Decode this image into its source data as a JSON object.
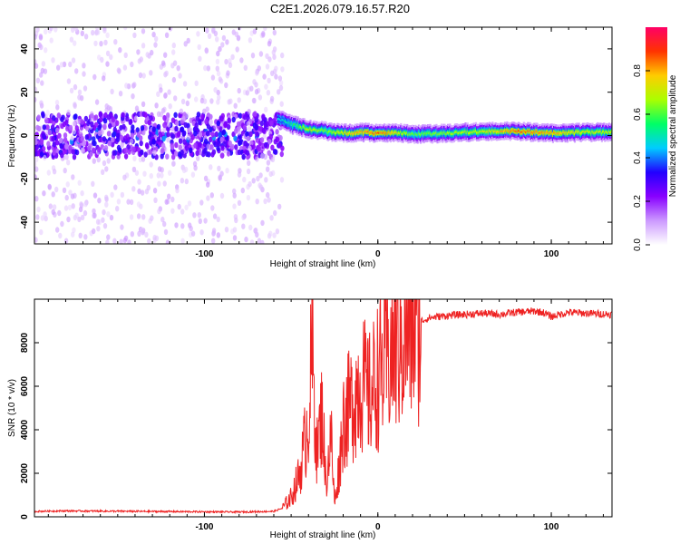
{
  "title": "C2E1.2026.079.16.57.R20",
  "chart_data": [
    {
      "type": "heatmap",
      "title": "",
      "xlabel": "Height of straight line (km)",
      "ylabel": "Frequency (Hz)",
      "xlim": [
        -198,
        135
      ],
      "ylim": [
        -50,
        50
      ],
      "xticks": [
        -100,
        0,
        100
      ],
      "xtick_labels": [
        "-100",
        "0",
        "100"
      ],
      "yticks": [
        -40,
        -20,
        0,
        20,
        40
      ],
      "ytick_labels": [
        "-40",
        "-20",
        "0",
        "20",
        "40"
      ],
      "colorbar": {
        "label": "Normalized spectral amplitude",
        "range": [
          0.0,
          1.0
        ],
        "ticks": [
          0.0,
          0.2,
          0.4,
          0.6,
          0.8
        ],
        "tick_labels": [
          "0.0",
          "0.2",
          "0.4",
          "0.6",
          "0.8"
        ],
        "colormap": [
          "#ffffff",
          "#cc99ff",
          "#8800ff",
          "#2200ff",
          "#00ccff",
          "#00ff66",
          "#aaff00",
          "#ffcc00",
          "#ff3300",
          "#ff0066"
        ]
      },
      "ridge": {
        "x": [
          -58,
          -50,
          -40,
          -30,
          -20,
          -10,
          0,
          10,
          20,
          40,
          60,
          80,
          100,
          120,
          135
        ],
        "frequency": [
          8,
          5,
          3,
          2,
          1,
          1.5,
          1,
          1.5,
          0.5,
          1,
          2,
          2,
          1,
          1.5,
          1.5
        ],
        "amplitude": [
          0.45,
          0.55,
          0.7,
          0.6,
          0.75,
          0.8,
          0.85,
          0.75,
          0.6,
          0.65,
          0.7,
          0.85,
          0.8,
          0.7,
          0.7
        ]
      },
      "noise_region": {
        "x_start": -198,
        "x_end": -55,
        "band_center_hz": 0,
        "band_halfwidth_hz": 10
      }
    },
    {
      "type": "line",
      "title": "",
      "xlabel": "Height of straight line (km)",
      "ylabel": "SNR (10 * v/v)",
      "xlim": [
        -198,
        135
      ],
      "ylim": [
        0,
        10000
      ],
      "xticks": [
        -100,
        0,
        100
      ],
      "xtick_labels": [
        "-100",
        "0",
        "100"
      ],
      "yticks": [
        0,
        2000,
        4000,
        6000,
        8000
      ],
      "ytick_labels": [
        "0",
        "2000",
        "4000",
        "6000",
        "8000"
      ],
      "color": "#ee2222",
      "series": [
        {
          "name": "SNR",
          "x": [
            -198,
            -180,
            -160,
            -140,
            -120,
            -100,
            -80,
            -60,
            -55,
            -50,
            -45,
            -40,
            -38,
            -35,
            -32,
            -30,
            -27,
            -25,
            -22,
            -20,
            -15,
            -10,
            -5,
            0,
            5,
            10,
            15,
            20,
            25,
            30,
            40,
            50,
            60,
            70,
            80,
            90,
            95,
            100,
            110,
            120,
            135
          ],
          "values": [
            250,
            270,
            260,
            250,
            240,
            230,
            220,
            250,
            400,
            900,
            2000,
            4500,
            7500,
            3000,
            5000,
            1500,
            3800,
            600,
            2500,
            4500,
            5200,
            6300,
            5500,
            6500,
            7200,
            7800,
            8400,
            8800,
            9000,
            9150,
            9250,
            9300,
            9350,
            9300,
            9400,
            9450,
            9400,
            9200,
            9400,
            9350,
            9300
          ]
        }
      ]
    }
  ]
}
